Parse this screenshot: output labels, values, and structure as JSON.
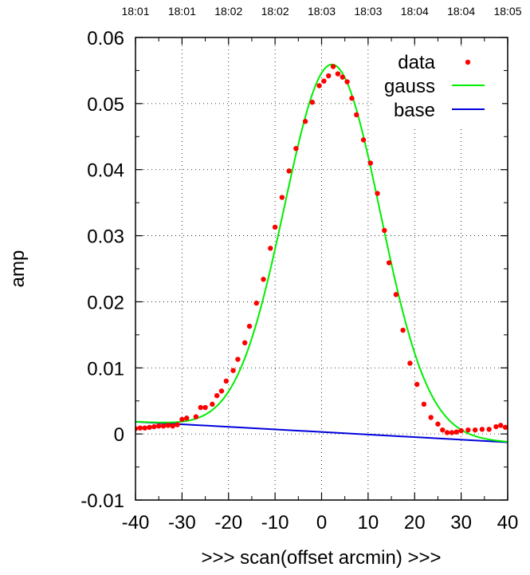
{
  "chart_data": {
    "type": "scatter",
    "xlabel": ">>> scan(offset arcmin) >>>",
    "ylabel": "amp",
    "xlim": [
      -40,
      40
    ],
    "ylim": [
      -0.01,
      0.06
    ],
    "x_ticks": [
      "-40",
      "-30",
      "-20",
      "-10",
      "0",
      "10",
      "20",
      "30",
      "40"
    ],
    "x_tick_values": [
      -40,
      -30,
      -20,
      -10,
      0,
      10,
      20,
      30,
      40
    ],
    "y_ticks": [
      "-0.01",
      "0",
      "0.01",
      "0.02",
      "0.03",
      "0.04",
      "0.05",
      "0.06"
    ],
    "y_tick_values": [
      -0.01,
      0,
      0.01,
      0.02,
      0.03,
      0.04,
      0.05,
      0.06
    ],
    "top_ticks": [
      "18:01",
      "18:01",
      "18:02",
      "18:02",
      "18:03",
      "18:03",
      "18:04",
      "18:04",
      "18:05"
    ],
    "grid": true,
    "legend_position": "top-right",
    "series": [
      {
        "name": "data",
        "style": "points",
        "color": "#ff0000",
        "points": [
          [
            -40.0,
            0.0008
          ],
          [
            -39.0,
            0.0009
          ],
          [
            -38.0,
            0.0009
          ],
          [
            -37.0,
            0.001
          ],
          [
            -36.0,
            0.0011
          ],
          [
            -35.0,
            0.0012
          ],
          [
            -34.0,
            0.0012
          ],
          [
            -33.0,
            0.0013
          ],
          [
            -32.0,
            0.0012
          ],
          [
            -31.0,
            0.0014
          ],
          [
            -30.0,
            0.0022
          ],
          [
            -29.0,
            0.0024
          ],
          [
            -27.0,
            0.0026
          ],
          [
            -26.0,
            0.004
          ],
          [
            -25.0,
            0.004
          ],
          [
            -23.5,
            0.0045
          ],
          [
            -22.5,
            0.0058
          ],
          [
            -21.5,
            0.0065
          ],
          [
            -20.5,
            0.008
          ],
          [
            -19.0,
            0.0096
          ],
          [
            -18.0,
            0.0113
          ],
          [
            -16.5,
            0.0138
          ],
          [
            -15.5,
            0.0163
          ],
          [
            -14.0,
            0.0198
          ],
          [
            -12.5,
            0.0234
          ],
          [
            -11.0,
            0.0281
          ],
          [
            -10.0,
            0.0313
          ],
          [
            -8.5,
            0.0358
          ],
          [
            -7.0,
            0.0398
          ],
          [
            -5.5,
            0.0432
          ],
          [
            -3.5,
            0.0473
          ],
          [
            -2.0,
            0.0502
          ],
          [
            -0.5,
            0.0527
          ],
          [
            0.5,
            0.0534
          ],
          [
            1.5,
            0.0542
          ],
          [
            2.5,
            0.0556
          ],
          [
            3.5,
            0.0545
          ],
          [
            4.5,
            0.054
          ],
          [
            5.5,
            0.0533
          ],
          [
            6.5,
            0.0508
          ],
          [
            7.5,
            0.0483
          ],
          [
            9.0,
            0.0445
          ],
          [
            10.5,
            0.041
          ],
          [
            12.0,
            0.0364
          ],
          [
            13.5,
            0.0308
          ],
          [
            14.5,
            0.0259
          ],
          [
            16.0,
            0.0211
          ],
          [
            17.5,
            0.0157
          ],
          [
            19.0,
            0.0107
          ],
          [
            20.5,
            0.0075
          ],
          [
            22.0,
            0.0045
          ],
          [
            23.5,
            0.0025
          ],
          [
            25.0,
            0.0015
          ],
          [
            26.0,
            0.0006
          ],
          [
            27.0,
            0.0002
          ],
          [
            28.0,
            0.0002
          ],
          [
            29.0,
            0.0003
          ],
          [
            30.0,
            0.0005
          ],
          [
            31.5,
            0.0006
          ],
          [
            33.0,
            0.0006
          ],
          [
            34.5,
            0.0007
          ],
          [
            36.0,
            0.0007
          ],
          [
            37.5,
            0.0011
          ],
          [
            38.5,
            0.0013
          ],
          [
            39.5,
            0.001
          ]
        ]
      },
      {
        "name": "gauss",
        "style": "line",
        "color": "#00ee00",
        "model": {
          "amplitude": 0.0557,
          "center": 2.3,
          "sigma": 10.3,
          "base_intercept": 0.0003,
          "base_slope": -3.88e-05
        }
      },
      {
        "name": "base",
        "style": "line",
        "color": "#0000dd",
        "endpoints": [
          [
            -40,
            0.00185
          ],
          [
            40,
            -0.00125
          ]
        ]
      }
    ]
  }
}
